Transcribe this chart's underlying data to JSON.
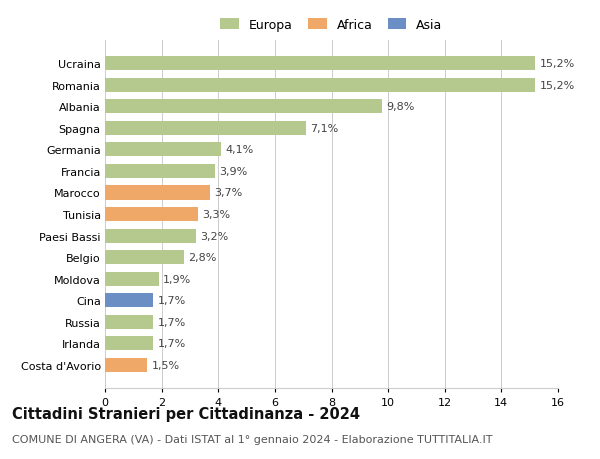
{
  "countries": [
    "Ucraina",
    "Romania",
    "Albania",
    "Spagna",
    "Germania",
    "Francia",
    "Marocco",
    "Tunisia",
    "Paesi Bassi",
    "Belgio",
    "Moldova",
    "Cina",
    "Russia",
    "Irlanda",
    "Costa d'Avorio"
  ],
  "values": [
    15.2,
    15.2,
    9.8,
    7.1,
    4.1,
    3.9,
    3.7,
    3.3,
    3.2,
    2.8,
    1.9,
    1.7,
    1.7,
    1.7,
    1.5
  ],
  "labels": [
    "15,2%",
    "15,2%",
    "9,8%",
    "7,1%",
    "4,1%",
    "3,9%",
    "3,7%",
    "3,3%",
    "3,2%",
    "2,8%",
    "1,9%",
    "1,7%",
    "1,7%",
    "1,7%",
    "1,5%"
  ],
  "colors": [
    "#b5c98e",
    "#b5c98e",
    "#b5c98e",
    "#b5c98e",
    "#b5c98e",
    "#b5c98e",
    "#f0a868",
    "#f0a868",
    "#b5c98e",
    "#b5c98e",
    "#b5c98e",
    "#6b8ec4",
    "#b5c98e",
    "#b5c98e",
    "#f0a868"
  ],
  "legend_labels": [
    "Europa",
    "Africa",
    "Asia"
  ],
  "legend_colors": [
    "#b5c98e",
    "#f0a868",
    "#6b8ec4"
  ],
  "title": "Cittadini Stranieri per Cittadinanza - 2024",
  "subtitle": "COMUNE DI ANGERA (VA) - Dati ISTAT al 1° gennaio 2024 - Elaborazione TUTTITALIA.IT",
  "xlim": [
    0,
    16
  ],
  "xticks": [
    0,
    2,
    4,
    6,
    8,
    10,
    12,
    14,
    16
  ],
  "background_color": "#ffffff",
  "grid_color": "#cccccc",
  "bar_height": 0.65,
  "label_fontsize": 8.0,
  "tick_fontsize": 8.0,
  "title_fontsize": 10.5,
  "subtitle_fontsize": 8.0
}
